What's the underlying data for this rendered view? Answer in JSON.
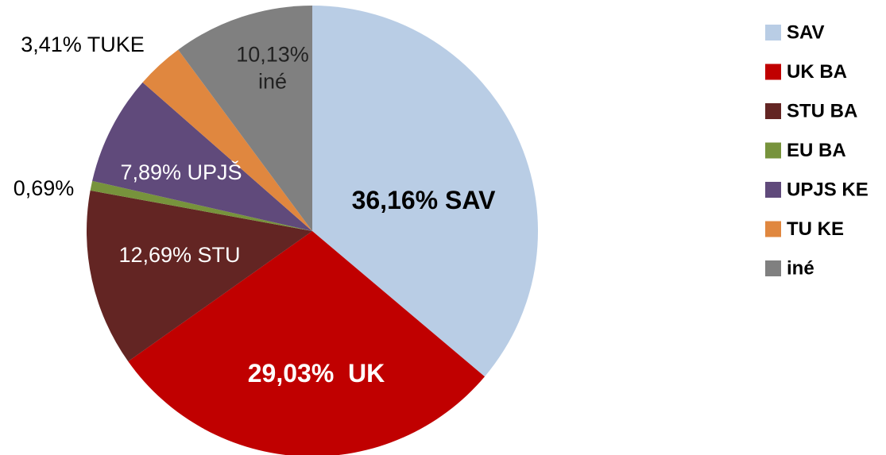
{
  "chart_data": {
    "type": "pie",
    "categories": [
      "SAV",
      "UK BA",
      "STU BA",
      "EU BA",
      "UPJS KE",
      "TU KE",
      "iné"
    ],
    "values": [
      36.16,
      29.03,
      12.69,
      0.69,
      7.89,
      3.41,
      10.13
    ],
    "value_labels": [
      "36,16% SAV",
      "29,03%  UK",
      "12,69% STU",
      "0,69%",
      "7,89% UPJŠ",
      "3,41% TUKE",
      "10,13% iné"
    ],
    "colors": [
      "#b9cde5",
      "#c00000",
      "#632523",
      "#77933c",
      "#604a7b",
      "#e0873f",
      "#808080"
    ],
    "legend": "right"
  }
}
